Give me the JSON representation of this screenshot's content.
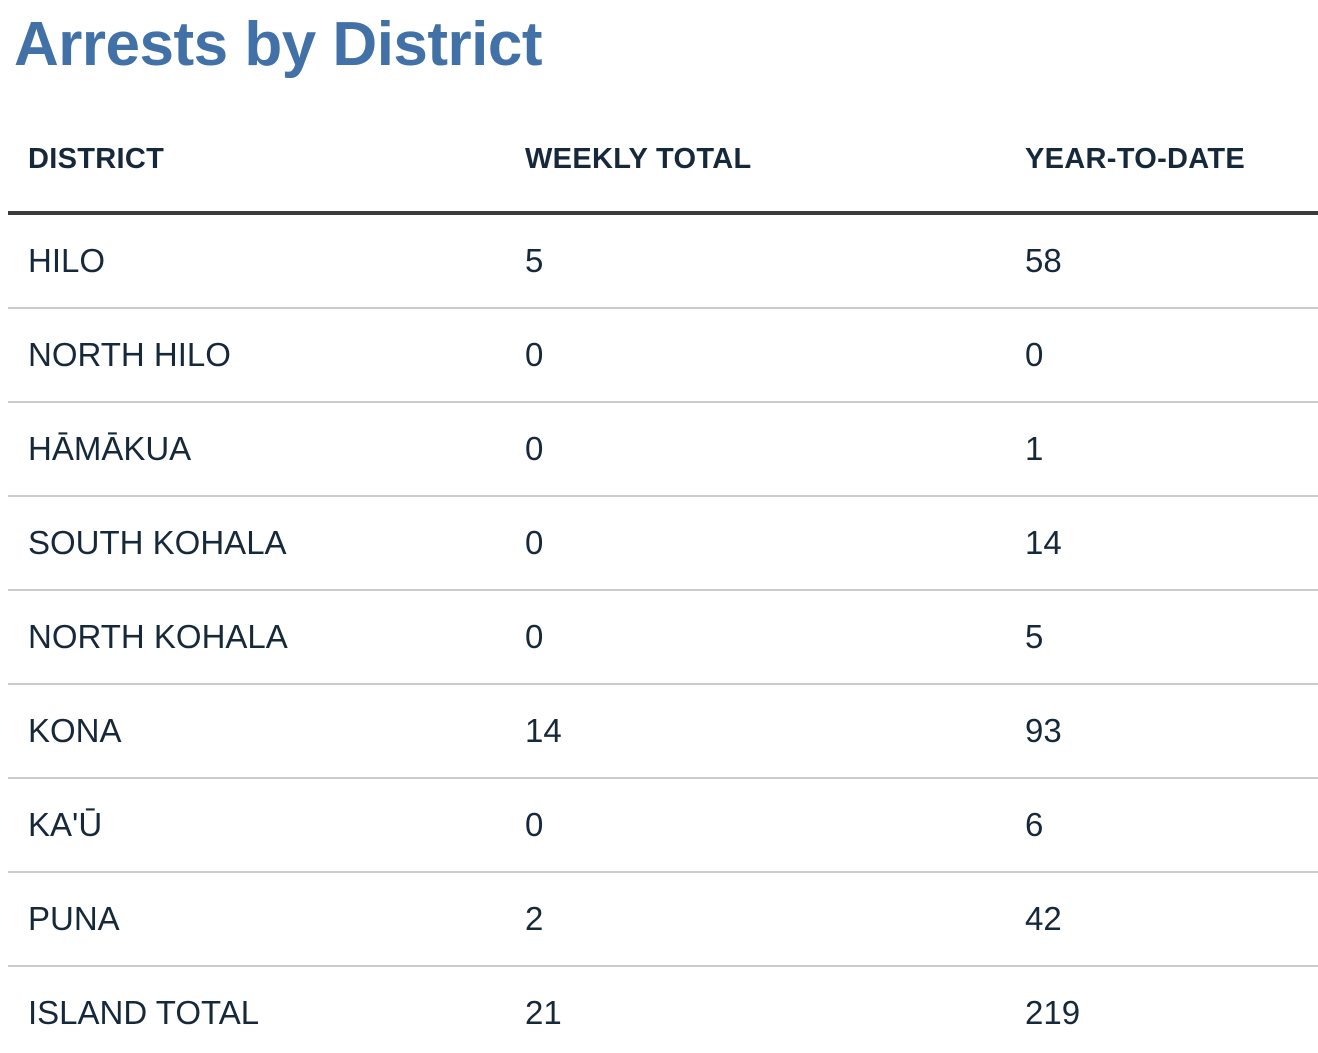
{
  "page": {
    "title": "Arrests by District"
  },
  "colors": {
    "background": "#ffffff",
    "title_text": "#4171a6",
    "body_text": "#16293a",
    "header_rule": "#3b3b3b",
    "row_divider": "#cbcbcb"
  },
  "table": {
    "columns": [
      "DISTRICT",
      "WEEKLY TOTAL",
      "YEAR-TO-DATE"
    ],
    "rows": [
      {
        "district": "HILO",
        "weekly": "5",
        "ytd": "58"
      },
      {
        "district": "NORTH HILO",
        "weekly": "0",
        "ytd": "0"
      },
      {
        "district": "HĀMĀKUA",
        "weekly": "0",
        "ytd": "1"
      },
      {
        "district": "SOUTH KOHALA",
        "weekly": "0",
        "ytd": "14"
      },
      {
        "district": "NORTH KOHALA",
        "weekly": "0",
        "ytd": "5"
      },
      {
        "district": "KONA",
        "weekly": "14",
        "ytd": "93"
      },
      {
        "district": "KA'Ū",
        "weekly": "0",
        "ytd": "6"
      },
      {
        "district": "PUNA",
        "weekly": "2",
        "ytd": "42"
      },
      {
        "district": "ISLAND TOTAL",
        "weekly": "21",
        "ytd": "219"
      }
    ]
  }
}
